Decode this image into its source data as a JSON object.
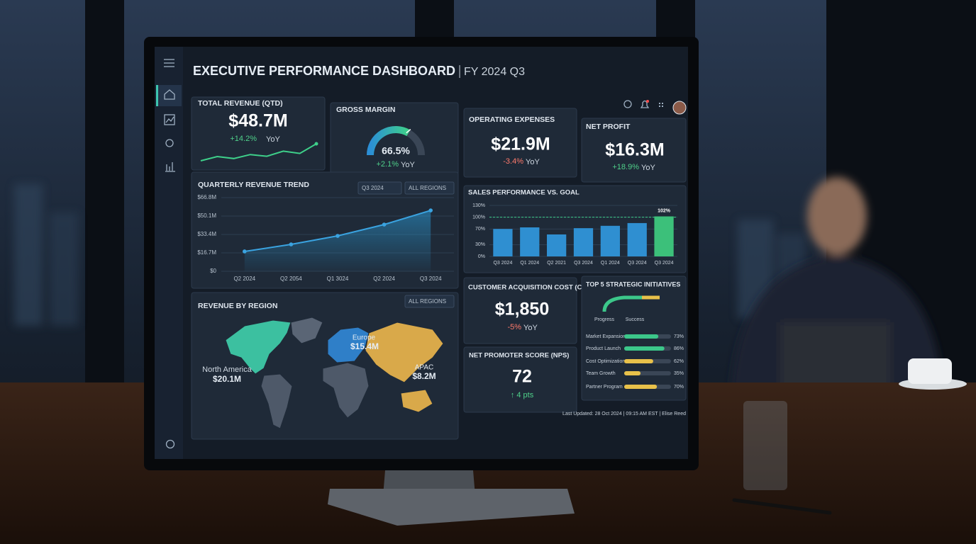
{
  "header": {
    "title": "EXECUTIVE PERFORMANCE DASHBOARD",
    "period": "FY 2024 Q3"
  },
  "kpis": {
    "total_revenue": {
      "label": "TOTAL REVENUE (QTD)",
      "value": "$48.7M",
      "change": "+14.2%",
      "change_period": "YoY",
      "sparkline": [
        3,
        4.5,
        3.8,
        5.2,
        4.6,
        6.4,
        5.6,
        9
      ]
    },
    "gross_margin": {
      "label": "GROSS MARGIN",
      "value": 66.5,
      "value_label": "66.5%",
      "gauge_lim": [
        0,
        100
      ],
      "change": "+2.1%",
      "change_period": "YoY"
    },
    "operating_expenses": {
      "label": "OPERATING EXPENSES",
      "value": "$21.9M",
      "change": "-3.4%",
      "change_period": "YoY"
    },
    "net_profit": {
      "label": "NET PROFIT",
      "value": "$16.3M",
      "change": "+18.9%",
      "change_period": "YoY"
    },
    "cac": {
      "label": "CUSTOMER ACQUISITION COST (CAC)",
      "value": "$1,850",
      "change": "-5%",
      "change_period": "YoY"
    },
    "nps": {
      "label": "NET PROMOTER SCORE (NPS)",
      "value": "72",
      "change": "↑ 4 pts"
    }
  },
  "region_map": {
    "title": "REVENUE BY REGION",
    "filter": "ALL REGIONS",
    "regions": [
      {
        "name": "North America",
        "value": "$20.1M"
      },
      {
        "name": "Europe",
        "value": "$15.4M"
      },
      {
        "name": "APAC",
        "value": "$8.2M"
      }
    ]
  },
  "footer": "Last Updated: 28 Oct 2024 | 09:15 AM EST | Elise Reed",
  "chart_data": [
    {
      "type": "line",
      "title": "QUARTERLY REVENUE TREND",
      "filters": [
        "Q3 2024",
        "ALL REGIONS"
      ],
      "categories": [
        "Q2 2024",
        "Q2 2054",
        "Q1 3024",
        "Q2 2024",
        "Q3 2024"
      ],
      "values": [
        18,
        24.4,
        32.1,
        42.4,
        55.2
      ],
      "color": "#3aa3e0",
      "ylim": [
        0,
        66.8
      ],
      "yticks": [
        {
          "value": 0,
          "label": "$0"
        },
        {
          "value": 16.7,
          "label": "$16.7M"
        },
        {
          "value": 33.4,
          "label": "$33.4M"
        },
        {
          "value": 50.1,
          "label": "$50.1M"
        },
        {
          "value": 66.8,
          "label": "$66.8M"
        }
      ],
      "grid": true
    },
    {
      "type": "bar",
      "title": "SALES PERFORMANCE VS. GOAL",
      "categories": [
        "Q3 2024",
        "Q1 2024",
        "Q2 2021",
        "Q3 2024",
        "Q1 2024",
        "Q3 2024",
        "Q3 2024"
      ],
      "values": [
        70,
        74,
        56,
        72,
        78,
        85,
        102
      ],
      "value_labels": [
        null,
        null,
        null,
        null,
        null,
        null,
        "102%"
      ],
      "colors": [
        "#2f8fd1",
        "#2f8fd1",
        "#2f8fd1",
        "#2f8fd1",
        "#2f8fd1",
        "#2f8fd1",
        "#3cc07a"
      ],
      "goal": 100,
      "ylim": [
        0,
        130
      ],
      "yticks": [
        {
          "value": 0,
          "label": "0%"
        },
        {
          "value": 30,
          "label": "30%"
        },
        {
          "value": 70,
          "label": "70%"
        },
        {
          "value": 100,
          "label": "100%"
        },
        {
          "value": 130,
          "label": "130%"
        }
      ],
      "grid": true
    },
    {
      "type": "bar",
      "orientation": "horizontal",
      "title": "TOP 5 STRATEGIC INITIATIVES",
      "legend": [
        "Progress",
        "Success"
      ],
      "categories": [
        "Market Expansion",
        "Product Launch",
        "Cost Optimization",
        "Team Growth",
        "Partner Program"
      ],
      "values": [
        73,
        86,
        62,
        35,
        70
      ],
      "value_labels": [
        "73%",
        "86%",
        "62%",
        "35%",
        "70%"
      ],
      "colors": [
        "#3cc78a",
        "#3cc78a",
        "#e8c14a",
        "#e8c14a",
        "#e8c14a"
      ],
      "xlim": [
        0,
        100
      ]
    }
  ]
}
